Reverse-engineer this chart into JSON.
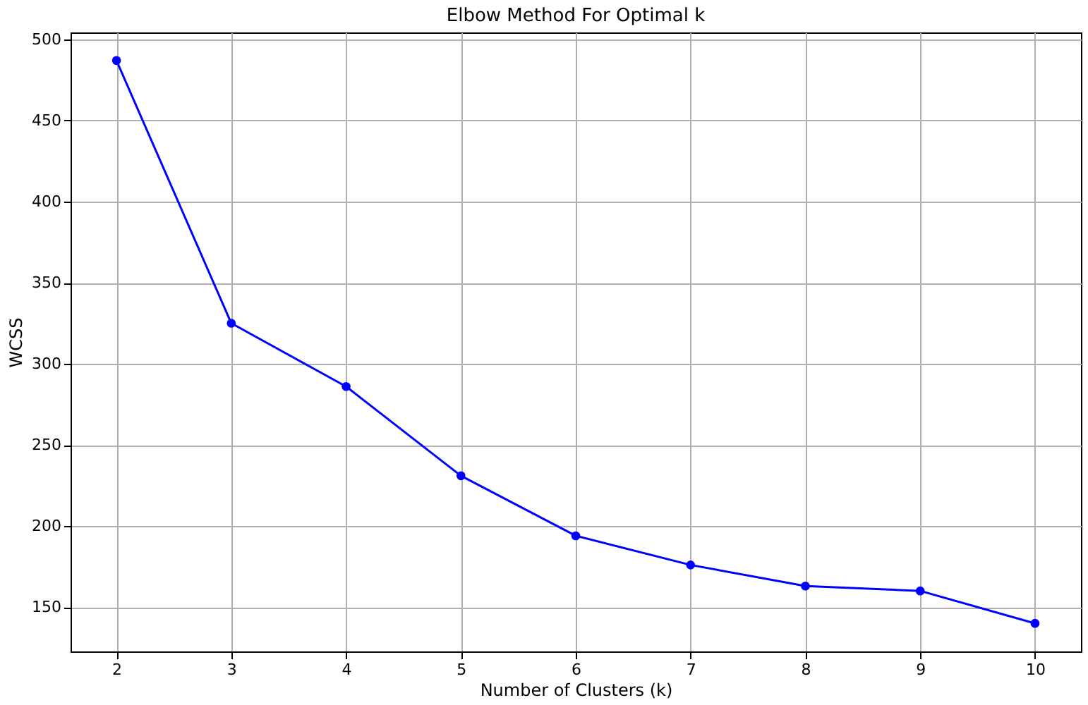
{
  "chart_data": {
    "type": "line",
    "title": "Elbow Method For Optimal k",
    "xlabel": "Number of Clusters (k)",
    "ylabel": "WCSS",
    "x": [
      2,
      3,
      4,
      5,
      6,
      7,
      8,
      9,
      10
    ],
    "series": [
      {
        "color": "#0000ff",
        "values": [
          487,
          325,
          286,
          231,
          194,
          176,
          163,
          160,
          140
        ]
      }
    ],
    "xlim": [
      1.6,
      10.4
    ],
    "ylim": [
      122.7,
      504.3
    ],
    "xticks": [
      2,
      3,
      4,
      5,
      6,
      7,
      8,
      9,
      10
    ],
    "yticks": [
      150,
      200,
      250,
      300,
      350,
      400,
      450,
      500
    ],
    "grid": true,
    "marker": "circle",
    "line_style": "solid"
  }
}
